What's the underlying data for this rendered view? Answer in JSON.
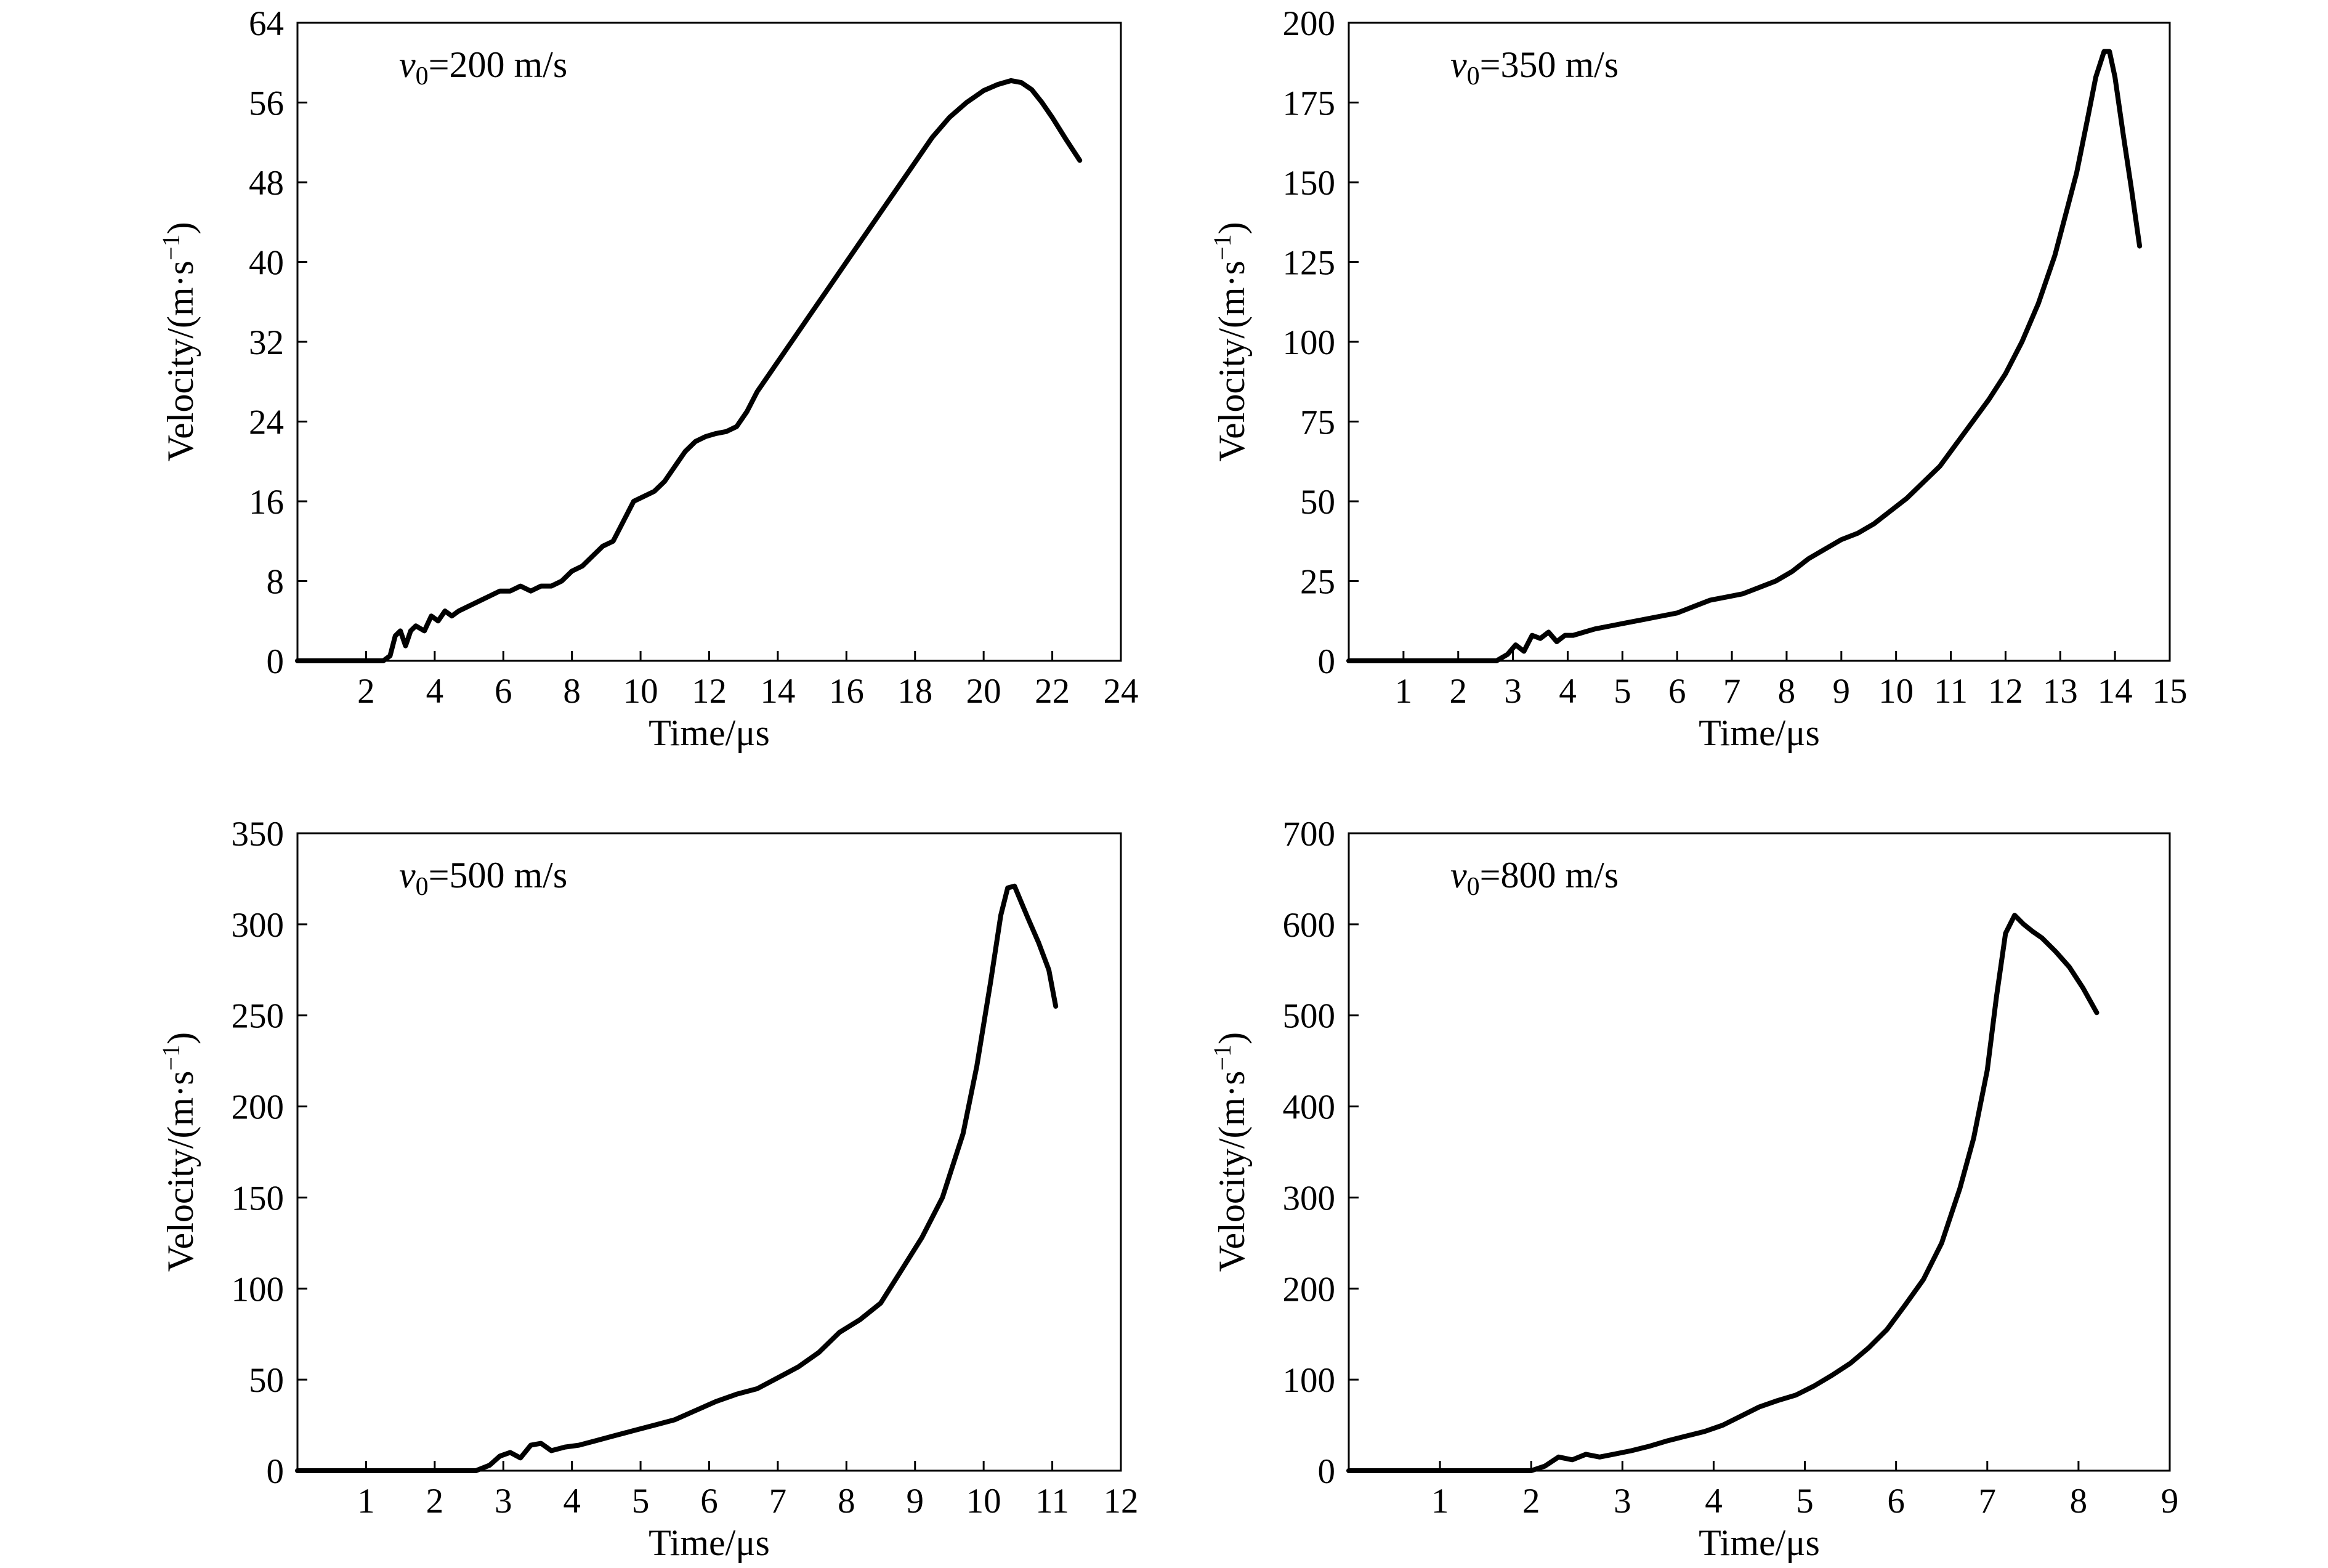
{
  "chart_data": [
    {
      "type": "line",
      "annotation": {
        "var": "v",
        "sub": "0",
        "text": "=200 m/s"
      },
      "xlabel": "Time/μs",
      "ylabel": {
        "main": "Velocity/(m·s",
        "sup": "−1",
        "close": ")"
      },
      "xlim": [
        0,
        24
      ],
      "ylim": [
        0,
        64
      ],
      "xticks": [
        2,
        4,
        6,
        8,
        10,
        12,
        14,
        16,
        18,
        20,
        22,
        24
      ],
      "yticks": [
        0,
        8,
        16,
        24,
        32,
        40,
        48,
        56,
        64
      ],
      "grid": false,
      "series": [
        {
          "x": [
            0,
            2.5,
            2.7,
            2.85,
            3.0,
            3.15,
            3.3,
            3.45,
            3.7,
            3.9,
            4.1,
            4.3,
            4.5,
            4.7,
            5.0,
            5.3,
            5.6,
            5.9,
            6.2,
            6.5,
            6.8,
            7.1,
            7.4,
            7.7,
            8.0,
            8.3,
            8.6,
            8.9,
            9.2,
            9.5,
            9.8,
            10.1,
            10.4,
            10.7,
            11.0,
            11.3,
            11.6,
            11.9,
            12.2,
            12.5,
            12.8,
            13.1,
            13.4,
            13.7,
            14.0,
            14.5,
            15.0,
            15.5,
            16.0,
            16.5,
            17.0,
            17.5,
            18.0,
            18.5,
            19.0,
            19.5,
            20.0,
            20.4,
            20.8,
            21.1,
            21.4,
            21.7,
            22.0,
            22.4,
            22.8
          ],
          "y": [
            0,
            0,
            0.5,
            2.5,
            3.0,
            1.5,
            3.0,
            3.5,
            3.0,
            4.5,
            4.0,
            5.0,
            4.5,
            5.0,
            5.5,
            6.0,
            6.5,
            7.0,
            7.0,
            7.5,
            7.0,
            7.5,
            7.5,
            8.0,
            9.0,
            9.5,
            10.5,
            11.5,
            12.0,
            14.0,
            16.0,
            16.5,
            17.0,
            18.0,
            19.5,
            21.0,
            22.0,
            22.5,
            22.8,
            23.0,
            23.5,
            25.0,
            27.0,
            28.5,
            30.0,
            32.5,
            35.0,
            37.5,
            40.0,
            42.5,
            45.0,
            47.5,
            50.0,
            52.5,
            54.5,
            56.0,
            57.2,
            57.8,
            58.2,
            58.0,
            57.3,
            56.0,
            54.5,
            52.3,
            50.2
          ]
        }
      ]
    },
    {
      "type": "line",
      "annotation": {
        "var": "v",
        "sub": "0",
        "text": "=350 m/s"
      },
      "xlabel": "Time/μs",
      "ylabel": {
        "main": "Velocity/(m·s",
        "sup": "−1",
        "close": ")"
      },
      "xlim": [
        0,
        15
      ],
      "ylim": [
        0,
        200
      ],
      "xticks": [
        1,
        2,
        3,
        4,
        5,
        6,
        7,
        8,
        9,
        10,
        11,
        12,
        13,
        14,
        15
      ],
      "yticks": [
        0,
        25,
        50,
        75,
        100,
        125,
        150,
        175,
        200
      ],
      "grid": false,
      "series": [
        {
          "x": [
            0,
            2.7,
            2.9,
            3.05,
            3.2,
            3.35,
            3.5,
            3.65,
            3.8,
            3.95,
            4.1,
            4.3,
            4.5,
            4.8,
            5.1,
            5.4,
            5.7,
            6.0,
            6.3,
            6.6,
            6.9,
            7.2,
            7.5,
            7.8,
            8.1,
            8.4,
            8.7,
            9.0,
            9.3,
            9.6,
            9.9,
            10.2,
            10.5,
            10.8,
            11.1,
            11.4,
            11.7,
            12.0,
            12.3,
            12.6,
            12.9,
            13.1,
            13.3,
            13.5,
            13.65,
            13.8,
            13.9,
            14.0,
            14.15,
            14.3,
            14.45
          ],
          "y": [
            0,
            0,
            2,
            5,
            3,
            8,
            7,
            9,
            6,
            8,
            8,
            9,
            10,
            11,
            12,
            13,
            14,
            15,
            17,
            19,
            20,
            21,
            23,
            25,
            28,
            32,
            35,
            38,
            40,
            43,
            47,
            51,
            56,
            61,
            68,
            75,
            82,
            90,
            100,
            112,
            127,
            140,
            153,
            170,
            183,
            191,
            191,
            183,
            165,
            148,
            130
          ]
        }
      ]
    },
    {
      "type": "line",
      "annotation": {
        "var": "v",
        "sub": "0",
        "text": "=500 m/s"
      },
      "xlabel": "Time/μs",
      "ylabel": {
        "main": "Velocity/(m·s",
        "sup": "−1",
        "close": ")"
      },
      "xlim": [
        0,
        12
      ],
      "ylim": [
        0,
        350
      ],
      "xticks": [
        1,
        2,
        3,
        4,
        5,
        6,
        7,
        8,
        9,
        10,
        11,
        12
      ],
      "yticks": [
        0,
        50,
        100,
        150,
        200,
        250,
        300,
        350
      ],
      "grid": false,
      "series": [
        {
          "x": [
            0,
            2.6,
            2.8,
            2.95,
            3.1,
            3.25,
            3.4,
            3.55,
            3.7,
            3.9,
            4.1,
            4.3,
            4.6,
            4.9,
            5.2,
            5.5,
            5.8,
            6.1,
            6.4,
            6.7,
            7.0,
            7.3,
            7.6,
            7.9,
            8.2,
            8.5,
            8.8,
            9.1,
            9.4,
            9.7,
            9.9,
            10.1,
            10.25,
            10.35,
            10.45,
            10.55,
            10.65,
            10.8,
            10.95,
            11.05
          ],
          "y": [
            0,
            0,
            3,
            8,
            10,
            7,
            14,
            15,
            11,
            13,
            14,
            16,
            19,
            22,
            25,
            28,
            33,
            38,
            42,
            45,
            51,
            57,
            65,
            76,
            83,
            92,
            110,
            128,
            150,
            185,
            222,
            268,
            305,
            320,
            321,
            312,
            303,
            290,
            275,
            255
          ]
        }
      ]
    },
    {
      "type": "line",
      "annotation": {
        "var": "v",
        "sub": "0",
        "text": "=800 m/s"
      },
      "xlabel": "Time/μs",
      "ylabel": {
        "main": "Velocity/(m·s",
        "sup": "−1",
        "close": ")"
      },
      "xlim": [
        0,
        9
      ],
      "ylim": [
        0,
        700
      ],
      "xticks": [
        1,
        2,
        3,
        4,
        5,
        6,
        7,
        8,
        9
      ],
      "yticks": [
        0,
        100,
        200,
        300,
        400,
        500,
        600,
        700
      ],
      "grid": false,
      "series": [
        {
          "x": [
            0,
            2.0,
            2.15,
            2.3,
            2.45,
            2.6,
            2.75,
            2.9,
            3.1,
            3.3,
            3.5,
            3.7,
            3.9,
            4.1,
            4.3,
            4.5,
            4.7,
            4.9,
            5.1,
            5.3,
            5.5,
            5.7,
            5.9,
            6.1,
            6.3,
            6.5,
            6.7,
            6.85,
            7.0,
            7.1,
            7.2,
            7.3,
            7.4,
            7.5,
            7.6,
            7.75,
            7.9,
            8.05,
            8.2
          ],
          "y": [
            0,
            0,
            5,
            15,
            12,
            18,
            15,
            18,
            22,
            27,
            33,
            38,
            43,
            50,
            60,
            70,
            77,
            83,
            93,
            105,
            118,
            135,
            155,
            182,
            210,
            250,
            310,
            365,
            440,
            520,
            590,
            610,
            600,
            592,
            585,
            570,
            553,
            530,
            503
          ]
        }
      ]
    }
  ]
}
